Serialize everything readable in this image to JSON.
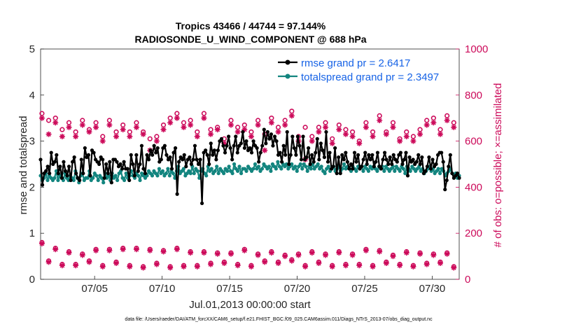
{
  "chart_data": {
    "type": "line",
    "title_line1": "Tropics 43466 / 44744 = 97.144%",
    "title_line2": "RADIOSONDE_U_WIND_COMPONENT @ 688 hPa",
    "xlabel": "Jul.01,2013 00:00:00 start",
    "ylabel_left": "rmse and totalspread",
    "ylabel_right": "# of obs: o=possible; ×=assimilated",
    "footer": "data file: /Users/raeder/DAI/ATM_forcXX/CAM6_setup/f.e21.FHIST_BGC.f09_025.CAM6assim.011/Diags_NTrS_2013-07/obs_diag_output.nc",
    "xlim": [
      1,
      32
    ],
    "ylim_left": [
      0,
      5
    ],
    "ylim_right": [
      0,
      1000
    ],
    "x_ticks": [
      5,
      10,
      15,
      20,
      25,
      30
    ],
    "x_tick_labels": [
      "07/05",
      "07/10",
      "07/15",
      "07/20",
      "07/25",
      "07/30"
    ],
    "y_ticks_left": [
      "0",
      "1",
      "2",
      "3",
      "4",
      "5"
    ],
    "y_ticks_right": [
      "0",
      "200",
      "400",
      "600",
      "800",
      "1000"
    ],
    "colors": {
      "rmse": "#000000",
      "spread": "#13857f",
      "obs": "#cc0a5a",
      "legend_text": "#1763e6"
    },
    "legend": [
      {
        "name": "rmse grand pr = 2.6417",
        "color": "#000000"
      },
      {
        "name": "totalspread grand pr = 2.3497",
        "color": "#13857f"
      }
    ],
    "series": [
      {
        "name": "rmse",
        "values": [
          2.6,
          2.05,
          2.3,
          2.35,
          2.45,
          2.3,
          2.75,
          2.5,
          2.55,
          2.7,
          2.3,
          2.45,
          2.2,
          2.55,
          2.35,
          2.25,
          2.45,
          2.15,
          2.55,
          2.65,
          2.3,
          2.2,
          2.15,
          2.6,
          2.3,
          2.85,
          2.65,
          2.7,
          2.25,
          2.8,
          2.75,
          2.6,
          2.55,
          2.5,
          2.65,
          2.6,
          2.2,
          2.5,
          2.3,
          2.55,
          2.1,
          2.6,
          2.6,
          2.55,
          2.45,
          2.5,
          2.4,
          2.55,
          2.4,
          2.4,
          2.15,
          2.7,
          2.5,
          2.25,
          2.7,
          2.35,
          2.5,
          2.9,
          2.4,
          2.3,
          2.7,
          2.6,
          2.8,
          2.7,
          2.9,
          2.75,
          2.85,
          2.55,
          2.6,
          2.85,
          2.9,
          2.7,
          2.6,
          2.65,
          2.4,
          2.75,
          2.85,
          1.85,
          2.55,
          2.65,
          2.6,
          2.7,
          2.45,
          2.6,
          2.65,
          2.5,
          2.6,
          2.9,
          2.6,
          2.5,
          2.6,
          1.65,
          2.75,
          2.8,
          2.7,
          2.5,
          2.95,
          2.7,
          2.8,
          2.6,
          2.8,
          3.0,
          3.05,
          2.9,
          2.75,
          2.9,
          3.1,
          2.85,
          2.6,
          2.9,
          3.1,
          2.75,
          2.9,
          2.95,
          3.2,
          2.85,
          3.0,
          2.8,
          2.85,
          2.75,
          3.0,
          2.9,
          2.85,
          2.55,
          2.75,
          2.9,
          3.25,
          2.95,
          3.2,
          3.05,
          3.15,
          2.9,
          3.1,
          3.0,
          2.7,
          2.75,
          2.55,
          2.9,
          2.7,
          3.2,
          2.5,
          2.7,
          3.1,
          2.85,
          2.7,
          3.1,
          2.9,
          2.6,
          3.1,
          2.6,
          2.65,
          2.85,
          2.5,
          2.7,
          2.55,
          2.75,
          3.05,
          2.6,
          2.95,
          2.8,
          2.65,
          3.2,
          2.55,
          2.75,
          2.4,
          2.45,
          2.85,
          2.3,
          2.65,
          2.3,
          2.7,
          2.6,
          2.75,
          2.55,
          2.4,
          2.5,
          2.4,
          2.75,
          2.55,
          2.7,
          2.4,
          2.45,
          2.6,
          2.75,
          2.5,
          2.7,
          2.6,
          2.7,
          2.45,
          2.55,
          2.75,
          2.45,
          2.4,
          2.6,
          2.75,
          2.6,
          2.5,
          2.65,
          2.5,
          2.7,
          2.6,
          2.55,
          2.7,
          2.75,
          2.5,
          2.6,
          2.75,
          2.25,
          2.65,
          2.55,
          2.6,
          2.5,
          2.55,
          2.7,
          2.5,
          2.65,
          2.3,
          2.35,
          2.45,
          2.65,
          2.4,
          2.6,
          2.45,
          2.5,
          2.7,
          2.75,
          2.75,
          2.55,
          1.95,
          2.15,
          2.45,
          2.7,
          2.3,
          2.2,
          2.25,
          2.3,
          2.2
        ]
      },
      {
        "name": "totalspread",
        "values": [
          2.25,
          2.15,
          2.2,
          2.3,
          2.15,
          2.25,
          2.2,
          2.15,
          2.2,
          2.35,
          2.15,
          2.25,
          2.2,
          2.15,
          2.3,
          2.2,
          2.15,
          2.25,
          2.2,
          2.15,
          2.35,
          2.2,
          2.1,
          2.25,
          2.3,
          2.15,
          2.2,
          2.2,
          2.35,
          2.15,
          2.2,
          2.3,
          2.25,
          2.15,
          2.25,
          2.2,
          2.1,
          2.3,
          2.2,
          2.25,
          2.15,
          2.3,
          2.2,
          2.25,
          2.15,
          2.3,
          2.35,
          2.2,
          2.15,
          2.3,
          2.2,
          2.25,
          2.35,
          2.25,
          2.2,
          2.3,
          2.25,
          2.15,
          2.3,
          2.25,
          2.2,
          2.25,
          2.35,
          2.3,
          2.25,
          2.35,
          2.3,
          2.25,
          2.4,
          2.3,
          2.35,
          2.25,
          2.3,
          2.4,
          2.25,
          2.35,
          2.3,
          2.2,
          2.35,
          2.45,
          2.3,
          2.35,
          2.4,
          2.25,
          2.3,
          2.35,
          2.3,
          2.45,
          2.3,
          2.4,
          2.35,
          2.2,
          2.35,
          2.4,
          2.3,
          2.25,
          2.45,
          2.35,
          2.4,
          2.3,
          2.35,
          2.45,
          2.3,
          2.4,
          2.35,
          2.3,
          2.4,
          2.35,
          2.45,
          2.35,
          2.3,
          2.5,
          2.4,
          2.35,
          2.45,
          2.3,
          2.4,
          2.4,
          2.35,
          2.45,
          2.4,
          2.35,
          2.4,
          2.5,
          2.4,
          2.45,
          2.35,
          2.4,
          2.5,
          2.45,
          2.4,
          2.45,
          2.35,
          2.5,
          2.45,
          2.4,
          2.55,
          2.45,
          2.4,
          2.5,
          2.45,
          2.5,
          2.4,
          2.45,
          2.5,
          2.4,
          2.45,
          2.35,
          2.45,
          2.5,
          2.4,
          2.5,
          2.45,
          2.35,
          2.45,
          2.4,
          2.5,
          2.4,
          2.45,
          2.5,
          2.4,
          2.45,
          2.35,
          2.3,
          2.4,
          2.45,
          2.35,
          2.4,
          2.45,
          2.35,
          2.4,
          2.45,
          2.35,
          2.4,
          2.5,
          2.4,
          2.45,
          2.4,
          2.35,
          2.45,
          2.4,
          2.35,
          2.45,
          2.4,
          2.45,
          2.35,
          2.45,
          2.4,
          2.35,
          2.45,
          2.4,
          2.45,
          2.4,
          2.35,
          2.45,
          2.4,
          2.45,
          2.35,
          2.45,
          2.4,
          2.35,
          2.4,
          2.45,
          2.35,
          2.45,
          2.4,
          2.35,
          2.45,
          2.4,
          2.3,
          2.45,
          2.4,
          2.35,
          2.45,
          2.4,
          2.35,
          2.4,
          2.45,
          2.35,
          2.4,
          2.3,
          2.35,
          2.4,
          2.45,
          2.35,
          2.4,
          2.3,
          2.35,
          2.4,
          2.3,
          2.4,
          2.35,
          2.25,
          2.3,
          2.35,
          2.4,
          2.3,
          2.25,
          2.3,
          2.2,
          2.25
        ]
      },
      {
        "name": "obs possible",
        "x": [
          1.1,
          1.6,
          2.1,
          2.6,
          3.1,
          3.6,
          4.1,
          4.6,
          5.1,
          5.6,
          6.1,
          6.6,
          7.1,
          7.6,
          8.1,
          8.6,
          9.1,
          9.6,
          10.1,
          10.6,
          11.1,
          11.6,
          12.1,
          12.6,
          13.1,
          13.6,
          14.1,
          14.6,
          15.1,
          15.6,
          16.1,
          16.6,
          17.1,
          17.6,
          18.1,
          18.6,
          19.1,
          19.6,
          20.1,
          20.6,
          21.1,
          21.6,
          22.1,
          22.6,
          23.1,
          23.6,
          24.1,
          24.6,
          25.1,
          25.6,
          26.1,
          26.6,
          27.1,
          27.6,
          28.1,
          28.6,
          29.1,
          29.6,
          30.1,
          30.6,
          31.1,
          31.6
        ],
        "values": [
          720,
          690,
          700,
          650,
          680,
          640,
          690,
          650,
          680,
          620,
          690,
          640,
          670,
          640,
          680,
          640,
          610,
          620,
          670,
          700,
          720,
          680,
          690,
          640,
          720,
          650,
          660,
          610,
          690,
          660,
          670,
          640,
          690,
          630,
          700,
          660,
          690,
          730,
          620,
          660,
          620,
          660,
          680,
          610,
          670,
          650,
          640,
          600,
          680,
          640,
          710,
          640,
          680,
          610,
          640,
          620,
          650,
          690,
          700,
          650,
          710,
          680
        ]
      },
      {
        "name": "obs assimilated",
        "x": [
          1.1,
          1.6,
          2.1,
          2.6,
          3.1,
          3.6,
          4.1,
          4.6,
          5.1,
          5.6,
          6.1,
          6.6,
          7.1,
          7.6,
          8.1,
          8.6,
          9.1,
          9.6,
          10.1,
          10.6,
          11.1,
          11.6,
          12.1,
          12.6,
          13.1,
          13.6,
          14.1,
          14.6,
          15.1,
          15.6,
          16.1,
          16.6,
          17.1,
          17.6,
          18.1,
          18.6,
          19.1,
          19.6,
          20.1,
          20.6,
          21.1,
          21.6,
          22.1,
          22.6,
          23.1,
          23.6,
          24.1,
          24.6,
          25.1,
          25.6,
          26.1,
          26.6,
          27.1,
          27.6,
          28.1,
          28.6,
          29.1,
          29.6,
          30.1,
          30.6,
          31.1,
          31.6
        ],
        "values": [
          700,
          630,
          680,
          620,
          660,
          620,
          670,
          640,
          660,
          600,
          670,
          620,
          650,
          620,
          660,
          630,
          560,
          600,
          650,
          680,
          700,
          660,
          670,
          620,
          700,
          630,
          650,
          590,
          670,
          640,
          650,
          620,
          670,
          560,
          680,
          640,
          670,
          710,
          600,
          520,
          600,
          640,
          660,
          590,
          650,
          630,
          620,
          590,
          660,
          620,
          690,
          630,
          660,
          600,
          620,
          600,
          630,
          670,
          680,
          630,
          690,
          660
        ]
      },
      {
        "name": "obs possible low",
        "x": [
          1.1,
          1.6,
          2.1,
          2.6,
          3.1,
          3.6,
          4.1,
          4.6,
          5.1,
          5.6,
          6.1,
          6.6,
          7.1,
          7.6,
          8.1,
          8.6,
          9.1,
          9.6,
          10.1,
          10.6,
          11.1,
          11.6,
          12.1,
          12.6,
          13.1,
          13.6,
          14.1,
          14.6,
          15.1,
          15.6,
          16.1,
          16.6,
          17.1,
          17.6,
          18.1,
          18.6,
          19.1,
          19.6,
          20.1,
          20.6,
          21.1,
          21.6,
          22.1,
          22.6,
          23.1,
          23.6,
          24.1,
          24.6,
          25.1,
          25.6,
          26.1,
          26.6,
          27.1,
          27.6,
          28.1,
          28.6,
          29.1,
          29.6,
          30.1,
          30.6,
          31.1,
          31.6
        ],
        "values": [
          160,
          80,
          135,
          65,
          120,
          65,
          110,
          80,
          130,
          60,
          130,
          75,
          135,
          60,
          135,
          55,
          130,
          70,
          125,
          55,
          135,
          60,
          120,
          60,
          120,
          70,
          115,
          75,
          115,
          65,
          130,
          60,
          110,
          80,
          120,
          75,
          105,
          85,
          110,
          60,
          120,
          75,
          110,
          60,
          120,
          65,
          110,
          65,
          130,
          60,
          125,
          75,
          105,
          65,
          120,
          60,
          115,
          70,
          110,
          75,
          115,
          55
        ]
      },
      {
        "name": "obs assimilated low",
        "x": [
          1.1,
          1.6,
          2.1,
          2.6,
          3.1,
          3.6,
          4.1,
          4.6,
          5.1,
          5.6,
          6.1,
          6.6,
          7.1,
          7.6,
          8.1,
          8.6,
          9.1,
          9.6,
          10.1,
          10.6,
          11.1,
          11.6,
          12.1,
          12.6,
          13.1,
          13.6,
          14.1,
          14.6,
          15.1,
          15.6,
          16.1,
          16.6,
          17.1,
          17.6,
          18.1,
          18.6,
          19.1,
          19.6,
          20.1,
          20.6,
          21.1,
          21.6,
          22.1,
          22.6,
          23.1,
          23.6,
          24.1,
          24.6,
          25.1,
          25.6,
          26.1,
          26.6,
          27.1,
          27.6,
          28.1,
          28.6,
          29.1,
          29.6,
          30.1,
          30.6,
          31.1,
          31.6
        ],
        "values": [
          155,
          75,
          130,
          60,
          115,
          60,
          105,
          75,
          125,
          55,
          125,
          70,
          130,
          55,
          130,
          50,
          125,
          65,
          120,
          50,
          130,
          55,
          115,
          55,
          115,
          65,
          110,
          70,
          110,
          60,
          125,
          55,
          105,
          75,
          115,
          70,
          100,
          80,
          105,
          55,
          115,
          70,
          105,
          55,
          115,
          60,
          105,
          60,
          125,
          55,
          120,
          70,
          100,
          60,
          115,
          55,
          110,
          65,
          105,
          70,
          110,
          50
        ]
      }
    ]
  }
}
